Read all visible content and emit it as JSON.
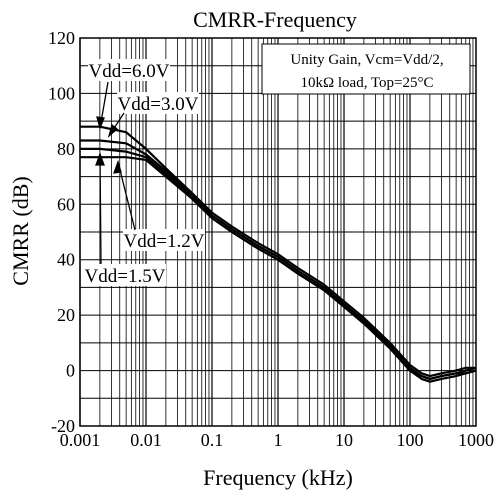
{
  "chart_data": {
    "type": "line",
    "title": "CMRR-Frequency",
    "xlabel": "Frequency (kHz)",
    "ylabel": "CMRR (dB)",
    "x_scale": "log",
    "xlim": [
      0.001,
      1000
    ],
    "ylim": [
      -20,
      120
    ],
    "x_ticks": [
      "0.001",
      "0.01",
      "0.1",
      "1",
      "10",
      "100",
      "1000"
    ],
    "y_ticks": [
      "120",
      "100",
      "80",
      "60",
      "40",
      "20",
      "0",
      "-20"
    ],
    "grid": true,
    "annotation_box": {
      "line1": "Unity Gain, Vcm=Vdd/2,",
      "line2": "10kΩ  load, Top=25°C"
    },
    "series": [
      {
        "name": "Vdd=6.0V",
        "x": [
          0.001,
          0.002,
          0.005,
          0.01,
          0.02,
          0.05,
          0.1,
          0.2,
          0.5,
          1,
          2,
          5,
          10,
          20,
          50,
          100,
          150,
          200,
          300,
          500,
          700,
          1000
        ],
        "y": [
          88,
          88,
          86,
          80,
          73,
          64,
          57,
          52,
          46,
          42,
          37,
          31,
          25,
          19,
          10,
          2,
          -1,
          -2,
          -1,
          0,
          1,
          1
        ]
      },
      {
        "name": "Vdd=3.0V",
        "x": [
          0.001,
          0.002,
          0.005,
          0.01,
          0.02,
          0.05,
          0.1,
          0.2,
          0.5,
          1,
          2,
          5,
          10,
          20,
          50,
          100,
          150,
          200,
          300,
          500,
          700,
          1000
        ],
        "y": [
          83,
          83,
          82,
          78,
          72,
          63,
          56,
          51,
          45,
          41,
          36,
          30,
          24,
          18,
          9,
          1,
          -2,
          -3,
          -2,
          -1,
          0,
          1
        ]
      },
      {
        "name": "Vdd=1.2V",
        "x": [
          0.001,
          0.002,
          0.005,
          0.01,
          0.02,
          0.05,
          0.1,
          0.2,
          0.5,
          1,
          2,
          5,
          10,
          20,
          50,
          100,
          150,
          200,
          300,
          500,
          700,
          1000
        ],
        "y": [
          80,
          80,
          79,
          77,
          71,
          62,
          55,
          50,
          44,
          40,
          35,
          29,
          23,
          17,
          8,
          0,
          -3,
          -4,
          -3,
          -2,
          -1,
          0
        ]
      },
      {
        "name": "Vdd=1.5V",
        "x": [
          0.001,
          0.002,
          0.005,
          0.01,
          0.02,
          0.05,
          0.1,
          0.2,
          0.5,
          1,
          2,
          5,
          10,
          20,
          50,
          100,
          150,
          200,
          300,
          500,
          700,
          1000
        ],
        "y": [
          77,
          77,
          77,
          76,
          70,
          62,
          55,
          50,
          44,
          40,
          35,
          29,
          23,
          17,
          8,
          0,
          -2,
          -3,
          -2,
          -1,
          -1,
          0
        ]
      }
    ],
    "colors": {
      "line": "#000000",
      "grid": "#000000",
      "background": "#ffffff"
    }
  }
}
